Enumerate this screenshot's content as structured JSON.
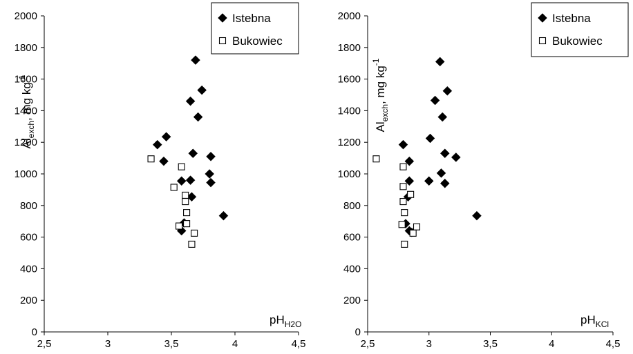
{
  "chart_data": [
    {
      "type": "scatter",
      "xlabel": {
        "base": "pH",
        "sub": "H2O"
      },
      "ylabel": {
        "base": "Al",
        "sub": "exch",
        "rest": ", mg kg",
        "sup": "-1"
      },
      "xlim": [
        2.5,
        4.5
      ],
      "ylim": [
        0,
        2000
      ],
      "xticks": [
        "2,5",
        "3",
        "3,5",
        "4",
        "4,5"
      ],
      "yticks": [
        "0",
        "200",
        "400",
        "600",
        "800",
        "1000",
        "1200",
        "1400",
        "1600",
        "1800",
        "2000"
      ],
      "grid": false,
      "legend_position": "top-right",
      "series": [
        {
          "name": "Istebna",
          "marker": "diamond-filled",
          "color": "#000000",
          "points": [
            [
              3.69,
              1720
            ],
            [
              3.74,
              1530
            ],
            [
              3.65,
              1460
            ],
            [
              3.71,
              1360
            ],
            [
              3.46,
              1235
            ],
            [
              3.39,
              1185
            ],
            [
              3.44,
              1080
            ],
            [
              3.67,
              1130
            ],
            [
              3.81,
              1110
            ],
            [
              3.8,
              1000
            ],
            [
              3.58,
              955
            ],
            [
              3.65,
              960
            ],
            [
              3.81,
              945
            ],
            [
              3.66,
              855
            ],
            [
              3.6,
              690
            ],
            [
              3.58,
              640
            ],
            [
              3.91,
              735
            ]
          ]
        },
        {
          "name": "Bukowiec",
          "marker": "square-open",
          "color": "#000000",
          "points": [
            [
              3.34,
              1095
            ],
            [
              3.58,
              1045
            ],
            [
              3.52,
              915
            ],
            [
              3.61,
              865
            ],
            [
              3.61,
              825
            ],
            [
              3.62,
              755
            ],
            [
              3.62,
              685
            ],
            [
              3.56,
              670
            ],
            [
              3.68,
              625
            ],
            [
              3.66,
              555
            ]
          ]
        }
      ]
    },
    {
      "type": "scatter",
      "xlabel": {
        "base": "pH",
        "sub": "KCl"
      },
      "ylabel": {
        "base": "Al",
        "sub": "exch",
        "rest": ", mg kg",
        "sup": "-1"
      },
      "xlim": [
        2.5,
        4.5
      ],
      "ylim": [
        0,
        2000
      ],
      "xticks": [
        "2,5",
        "3",
        "3,5",
        "4",
        "4,5"
      ],
      "yticks": [
        "0",
        "200",
        "400",
        "600",
        "800",
        "1000",
        "1200",
        "1400",
        "1600",
        "1800",
        "2000"
      ],
      "grid": false,
      "legend_position": "top-right",
      "series": [
        {
          "name": "Istebna",
          "marker": "diamond-filled",
          "color": "#000000",
          "points": [
            [
              3.09,
              1710
            ],
            [
              3.05,
              1465
            ],
            [
              3.15,
              1525
            ],
            [
              3.11,
              1360
            ],
            [
              3.01,
              1225
            ],
            [
              2.79,
              1185
            ],
            [
              3.13,
              1130
            ],
            [
              3.22,
              1105
            ],
            [
              2.84,
              1080
            ],
            [
              3.1,
              1005
            ],
            [
              3.0,
              955
            ],
            [
              2.84,
              955
            ],
            [
              3.13,
              940
            ],
            [
              2.83,
              855
            ],
            [
              2.81,
              685
            ],
            [
              2.84,
              640
            ],
            [
              2.86,
              630
            ],
            [
              3.39,
              735
            ]
          ]
        },
        {
          "name": "Bukowiec",
          "marker": "square-open",
          "color": "#000000",
          "points": [
            [
              2.57,
              1095
            ],
            [
              2.79,
              1045
            ],
            [
              2.79,
              920
            ],
            [
              2.85,
              870
            ],
            [
              2.79,
              825
            ],
            [
              2.8,
              755
            ],
            [
              2.78,
              680
            ],
            [
              2.9,
              665
            ],
            [
              2.87,
              625
            ],
            [
              2.8,
              555
            ]
          ]
        }
      ]
    }
  ]
}
